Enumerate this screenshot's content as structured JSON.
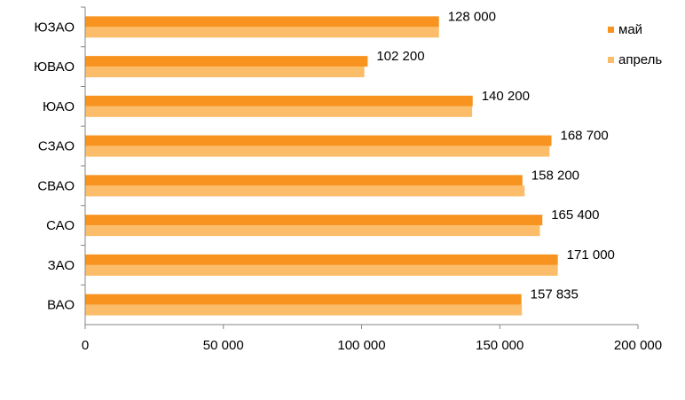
{
  "chart_data": {
    "type": "bar",
    "orientation": "horizontal",
    "categories": [
      "ЮЗАО",
      "ЮВАО",
      "ЮАО",
      "СЗАО",
      "СВАО",
      "САО",
      "ЗАО",
      "ВАО"
    ],
    "series": [
      {
        "name": "май",
        "color": "#F7931E",
        "values": [
          128000,
          102200,
          140200,
          168700,
          158200,
          165400,
          171000,
          157835
        ],
        "value_labels": [
          "128 000",
          "102 200",
          "140 200",
          "168 700",
          "158 200",
          "165 400",
          "171 000",
          "157 835"
        ]
      },
      {
        "name": "апрель",
        "color": "#FBBD6A",
        "values": [
          128000,
          101000,
          140000,
          168000,
          159000,
          164500,
          171000,
          158000
        ]
      }
    ],
    "xlim": [
      0,
      200000
    ],
    "x_ticks": [
      0,
      50000,
      100000,
      150000,
      200000
    ],
    "x_tick_labels": [
      "0",
      "50 000",
      "100 000",
      "150 000",
      "200 000"
    ],
    "grid": false,
    "legend_position": "top-right"
  }
}
